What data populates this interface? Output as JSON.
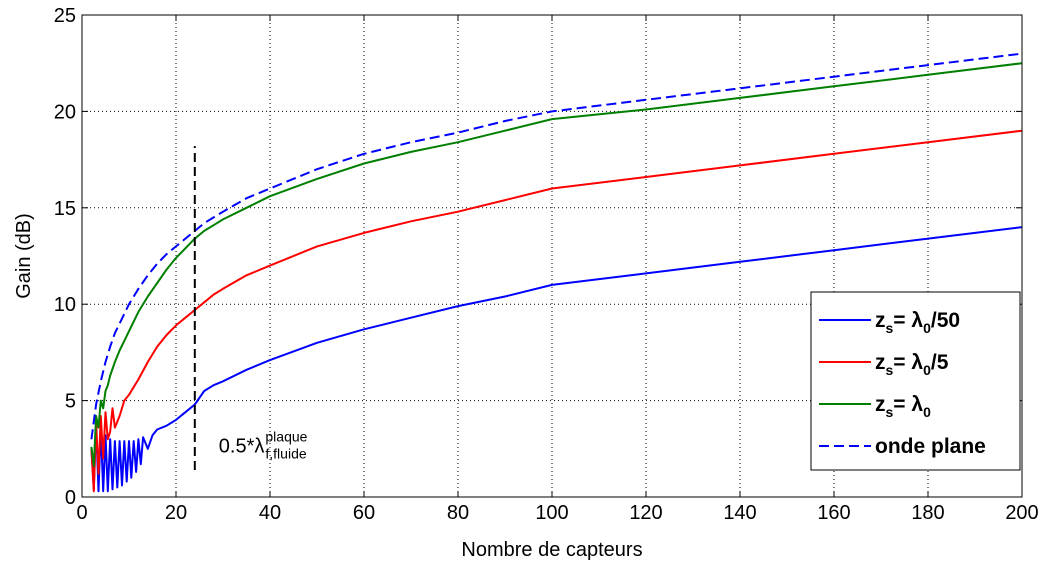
{
  "chart_data": {
    "type": "line",
    "xlabel": "Nombre de capteurs",
    "ylabel": "Gain (dB)",
    "xlim": [
      0,
      200
    ],
    "ylim": [
      0,
      25
    ],
    "xticks": [
      0,
      20,
      40,
      60,
      80,
      100,
      120,
      140,
      160,
      180,
      200
    ],
    "yticks": [
      0,
      5,
      10,
      15,
      20,
      25
    ],
    "grid": true,
    "legend_position": "bottom-right",
    "series": [
      {
        "legend": {
          "main": "z",
          "sub": "s",
          "eq": " = λ",
          "sub2": "0",
          "tail": "/50"
        },
        "color": "#0000ff",
        "dash": "solid",
        "x": [
          2,
          2.5,
          3,
          3.5,
          4,
          4.5,
          5,
          5.5,
          6,
          6.5,
          7,
          7.5,
          8,
          8.5,
          9,
          9.5,
          10,
          10.5,
          11,
          11.5,
          12,
          12.5,
          13,
          14,
          15,
          16,
          18,
          20,
          22,
          24,
          26,
          28,
          30,
          35,
          40,
          50,
          60,
          70,
          80,
          90,
          100,
          120,
          140,
          160,
          180,
          200
        ],
        "y": [
          2.5,
          0.4,
          3.8,
          0.3,
          3.6,
          0.3,
          3.2,
          0.3,
          3.0,
          0.4,
          2.9,
          0.5,
          2.9,
          0.6,
          2.9,
          0.8,
          2.9,
          1.0,
          2.9,
          1.3,
          3.0,
          1.7,
          3.1,
          2.5,
          3.2,
          3.5,
          3.7,
          4.0,
          4.4,
          4.8,
          5.5,
          5.8,
          6.0,
          6.6,
          7.1,
          8.0,
          8.7,
          9.3,
          9.9,
          10.4,
          11.0,
          11.6,
          12.2,
          12.8,
          13.4,
          14.0
        ]
      },
      {
        "legend": {
          "main": "z",
          "sub": "s",
          "eq": " = λ",
          "sub2": "0",
          "tail": "/5"
        },
        "color": "#ff0000",
        "dash": "solid",
        "x": [
          2,
          2.5,
          3,
          3.5,
          4,
          4.5,
          5,
          5.5,
          6,
          6.5,
          7,
          8,
          9,
          10,
          12,
          14,
          16,
          18,
          20,
          22,
          24,
          26,
          28,
          30,
          35,
          40,
          50,
          60,
          70,
          80,
          90,
          100,
          120,
          140,
          160,
          180,
          200
        ],
        "y": [
          2.5,
          0.3,
          3.9,
          1.2,
          4.2,
          2.0,
          4.4,
          3.0,
          3.4,
          4.6,
          3.6,
          4.2,
          5.0,
          5.3,
          6.1,
          7.0,
          7.8,
          8.4,
          8.9,
          9.3,
          9.7,
          10.1,
          10.5,
          10.8,
          11.5,
          12.0,
          13.0,
          13.7,
          14.3,
          14.8,
          15.4,
          16.0,
          16.6,
          17.2,
          17.8,
          18.4,
          19.0
        ]
      },
      {
        "legend": {
          "main": "z",
          "sub": "s",
          "eq": " = λ",
          "sub2": "0",
          "tail": ""
        },
        "color": "#007f00",
        "dash": "solid",
        "x": [
          2,
          2.5,
          3,
          3.5,
          4,
          4.5,
          5,
          5.5,
          6,
          7,
          8,
          10,
          12,
          14,
          16,
          18,
          20,
          22,
          24,
          26,
          28,
          30,
          35,
          40,
          50,
          60,
          70,
          80,
          90,
          100,
          120,
          140,
          160,
          180,
          200
        ],
        "y": [
          2.6,
          1.6,
          4.2,
          3.6,
          5.0,
          4.6,
          5.5,
          5.8,
          6.3,
          7.0,
          7.6,
          8.6,
          9.6,
          10.4,
          11.1,
          11.8,
          12.4,
          12.9,
          13.4,
          13.8,
          14.1,
          14.4,
          15.0,
          15.6,
          16.5,
          17.3,
          17.9,
          18.4,
          19.0,
          19.6,
          20.1,
          20.7,
          21.3,
          21.9,
          22.5
        ]
      },
      {
        "legend": {
          "main": "onde plane",
          "sub": "",
          "eq": "",
          "sub2": "",
          "tail": ""
        },
        "color": "#0000ff",
        "dash": "dashed",
        "x": [
          2,
          3,
          4,
          5,
          6,
          7,
          8,
          10,
          12,
          14,
          16,
          18,
          20,
          22,
          24,
          26,
          28,
          30,
          35,
          40,
          50,
          60,
          70,
          80,
          90,
          100,
          120,
          140,
          160,
          180,
          200
        ],
        "y": [
          3.0,
          4.8,
          6.0,
          7.0,
          7.8,
          8.5,
          9.0,
          10.0,
          10.8,
          11.5,
          12.1,
          12.6,
          13.0,
          13.4,
          13.8,
          14.2,
          14.5,
          14.8,
          15.5,
          16.0,
          17.0,
          17.8,
          18.4,
          18.9,
          19.5,
          20.0,
          20.6,
          21.2,
          21.8,
          22.4,
          23.0
        ]
      }
    ],
    "annotation": {
      "x": 24,
      "y_range": [
        1.4,
        18.2
      ],
      "text": "0.5*λ",
      "superscript": "plaque",
      "subscript": "f,fluide"
    }
  }
}
